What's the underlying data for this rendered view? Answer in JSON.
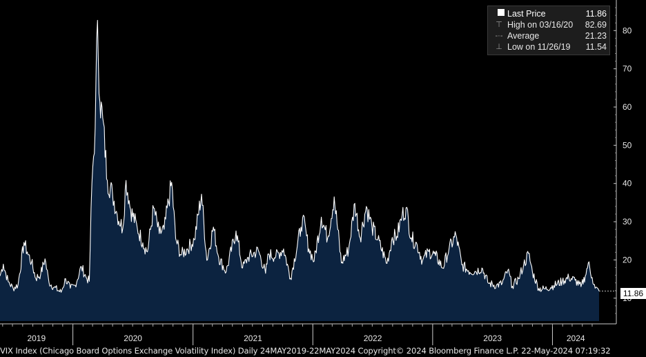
{
  "chart_data": {
    "type": "area",
    "title": "",
    "xlabel": "",
    "ylabel": "",
    "ylim": [
      4,
      88
    ],
    "yticks": [
      10,
      20,
      30,
      40,
      50,
      60,
      70,
      80
    ],
    "xticks": [
      "2019",
      "2020",
      "2021",
      "2022",
      "2023",
      "2024"
    ],
    "x_range": [
      "2019-05-24",
      "2024-05-22"
    ],
    "grid": false,
    "legend_position": "top-right",
    "series": [
      {
        "name": "Last Price",
        "color": "#ffffff",
        "fill": "#0c2340",
        "points": [
          [
            "2019-05-24",
            15.8
          ],
          [
            "2019-06-03",
            18.9
          ],
          [
            "2019-06-18",
            14.3
          ],
          [
            "2019-07-03",
            12.6
          ],
          [
            "2019-07-18",
            13.5
          ],
          [
            "2019-08-05",
            24.6
          ],
          [
            "2019-08-15",
            22.1
          ],
          [
            "2019-08-28",
            19.4
          ],
          [
            "2019-09-10",
            15.2
          ],
          [
            "2019-09-25",
            16.3
          ],
          [
            "2019-10-08",
            20.3
          ],
          [
            "2019-10-20",
            14.2
          ],
          [
            "2019-11-05",
            12.8
          ],
          [
            "2019-11-26",
            11.54
          ],
          [
            "2019-12-10",
            15.1
          ],
          [
            "2019-12-24",
            12.6
          ],
          [
            "2020-01-08",
            13.4
          ],
          [
            "2020-01-27",
            18.2
          ],
          [
            "2020-02-10",
            15.5
          ],
          [
            "2020-02-20",
            14.4
          ],
          [
            "2020-02-28",
            40.1
          ],
          [
            "2020-03-09",
            54.5
          ],
          [
            "2020-03-16",
            82.69
          ],
          [
            "2020-03-23",
            61.6
          ],
          [
            "2020-04-01",
            57.1
          ],
          [
            "2020-04-15",
            40.8
          ],
          [
            "2020-05-01",
            37.2
          ],
          [
            "2020-05-15",
            31.9
          ],
          [
            "2020-06-01",
            28.2
          ],
          [
            "2020-06-11",
            40.8
          ],
          [
            "2020-06-25",
            33.1
          ],
          [
            "2020-07-15",
            28.5
          ],
          [
            "2020-08-01",
            24.5
          ],
          [
            "2020-08-15",
            22.1
          ],
          [
            "2020-09-03",
            33.6
          ],
          [
            "2020-09-20",
            26.9
          ],
          [
            "2020-10-05",
            28.0
          ],
          [
            "2020-10-28",
            40.3
          ],
          [
            "2020-11-09",
            25.6
          ],
          [
            "2020-11-25",
            21.3
          ],
          [
            "2020-12-15",
            22.9
          ],
          [
            "2021-01-05",
            25.3
          ],
          [
            "2021-01-27",
            37.2
          ],
          [
            "2021-02-12",
            19.9
          ],
          [
            "2021-03-04",
            28.6
          ],
          [
            "2021-03-20",
            20.7
          ],
          [
            "2021-04-12",
            16.9
          ],
          [
            "2021-05-12",
            27.6
          ],
          [
            "2021-06-01",
            17.9
          ],
          [
            "2021-06-18",
            20.7
          ],
          [
            "2021-07-19",
            22.5
          ],
          [
            "2021-08-10",
            16.5
          ],
          [
            "2021-08-19",
            21.6
          ],
          [
            "2021-09-10",
            20.9
          ],
          [
            "2021-10-04",
            22.9
          ],
          [
            "2021-10-25",
            15.2
          ],
          [
            "2021-11-26",
            28.6
          ],
          [
            "2021-12-01",
            31.1
          ],
          [
            "2021-12-20",
            22.9
          ],
          [
            "2022-01-05",
            19.7
          ],
          [
            "2022-01-27",
            31.2
          ],
          [
            "2022-02-15",
            25.7
          ],
          [
            "2022-03-07",
            36.5
          ],
          [
            "2022-03-29",
            19.2
          ],
          [
            "2022-04-20",
            22.7
          ],
          [
            "2022-05-09",
            34.8
          ],
          [
            "2022-05-25",
            25.8
          ],
          [
            "2022-06-13",
            34.0
          ],
          [
            "2022-06-30",
            28.7
          ],
          [
            "2022-07-18",
            25.3
          ],
          [
            "2022-08-15",
            19.1
          ],
          [
            "2022-08-31",
            25.9
          ],
          [
            "2022-09-14",
            26.2
          ],
          [
            "2022-09-30",
            31.6
          ],
          [
            "2022-10-12",
            33.6
          ],
          [
            "2022-10-28",
            25.8
          ],
          [
            "2022-11-15",
            23.9
          ],
          [
            "2022-12-01",
            19.8
          ],
          [
            "2022-12-20",
            22.2
          ],
          [
            "2023-01-10",
            21.1
          ],
          [
            "2023-02-01",
            17.9
          ],
          [
            "2023-02-20",
            22.9
          ],
          [
            "2023-03-13",
            26.5
          ],
          [
            "2023-03-31",
            18.7
          ],
          [
            "2023-04-20",
            17.2
          ],
          [
            "2023-05-12",
            17.0
          ],
          [
            "2023-05-31",
            17.9
          ],
          [
            "2023-06-20",
            13.9
          ],
          [
            "2023-07-14",
            13.3
          ],
          [
            "2023-08-01",
            13.9
          ],
          [
            "2023-08-18",
            17.3
          ],
          [
            "2023-09-01",
            13.1
          ],
          [
            "2023-09-20",
            15.1
          ],
          [
            "2023-10-05",
            18.6
          ],
          [
            "2023-10-20",
            21.7
          ],
          [
            "2023-11-01",
            16.9
          ],
          [
            "2023-11-20",
            12.5
          ],
          [
            "2023-12-10",
            12.4
          ],
          [
            "2024-01-05",
            13.3
          ],
          [
            "2024-01-31",
            14.4
          ],
          [
            "2024-02-20",
            15.4
          ],
          [
            "2024-03-10",
            14.7
          ],
          [
            "2024-03-28",
            13.0
          ],
          [
            "2024-04-10",
            15.8
          ],
          [
            "2024-04-19",
            19.2
          ],
          [
            "2024-05-01",
            15.4
          ],
          [
            "2024-05-10",
            12.6
          ],
          [
            "2024-05-22",
            11.86
          ]
        ]
      }
    ],
    "legend": {
      "last_price": {
        "label": "Last Price",
        "value": "11.86"
      },
      "high": {
        "label": "High on 03/16/20",
        "value": "82.69"
      },
      "average": {
        "label": "Average",
        "value": "21.23"
      },
      "low": {
        "label": "Low on 11/26/19",
        "value": "11.54"
      }
    },
    "last_value_tag": "11.86",
    "colors": {
      "background": "#000000",
      "line": "#ffffff",
      "fill": "#0c2340",
      "axis": "#cccccc"
    }
  },
  "footer_text": "VIX Index (Chicago Board Options Exchange Volatility Index)  Daily 24MAY2019-22MAY2024 Copyright© 2024 Bloomberg Finance L.P.  22-May-2024 07:19:32"
}
